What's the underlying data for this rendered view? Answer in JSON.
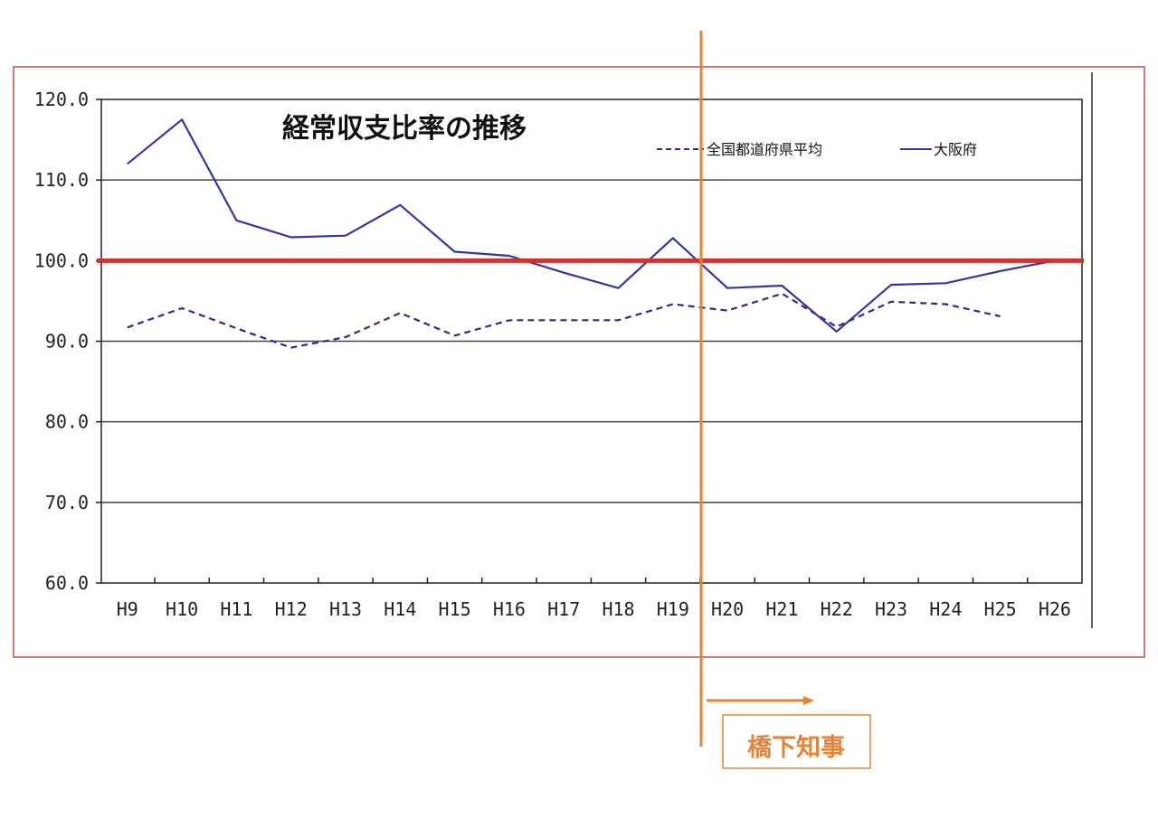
{
  "chart_data": {
    "type": "line",
    "title": "経常収支比率の推移",
    "categories": [
      "H9",
      "H10",
      "H11",
      "H12",
      "H13",
      "H14",
      "H15",
      "H16",
      "H17",
      "H18",
      "H19",
      "H20",
      "H21",
      "H22",
      "H23",
      "H24",
      "H25",
      "H26"
    ],
    "yticks": [
      "60.0",
      "70.0",
      "80.0",
      "90.0",
      "100.0",
      "110.0",
      "120.0"
    ],
    "ylim": [
      60,
      120
    ],
    "grid": true,
    "legend_position": "top-right",
    "series": [
      {
        "name": "全国都道府県平均",
        "style": "dashed",
        "color": "#2e2e80",
        "values": [
          91.7,
          94.1,
          91.6,
          89.2,
          90.5,
          93.5,
          90.7,
          92.6,
          92.6,
          92.6,
          94.6,
          93.8,
          95.9,
          91.8,
          94.9,
          94.6,
          93.1,
          null
        ]
      },
      {
        "name": "大阪府",
        "style": "solid",
        "color": "#3535a0",
        "values": [
          112.0,
          117.5,
          105.0,
          102.9,
          103.1,
          106.9,
          101.1,
          100.6,
          98.5,
          96.6,
          102.8,
          96.6,
          96.9,
          91.2,
          97.0,
          97.2,
          98.7,
          100.0
        ]
      }
    ],
    "reference_line": {
      "value": 100,
      "color": "#cc3333"
    },
    "annotation": {
      "label": "橋下知事",
      "from_category": "H20",
      "color": "#e2853a"
    }
  }
}
